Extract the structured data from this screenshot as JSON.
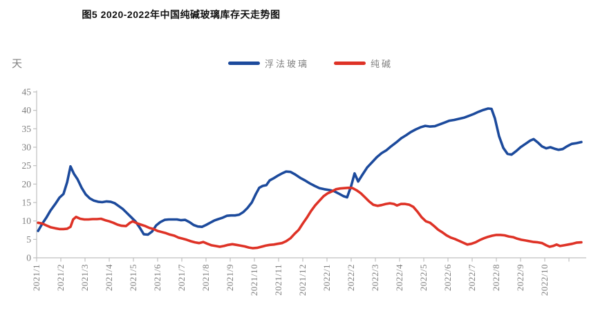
{
  "title": "图5 2020-2022年中国纯碱玻璃库存天走势图",
  "chart_data": {
    "type": "line",
    "title": "图5 2020-2022年中国纯碱玻璃库存天走势图",
    "xlabel": "",
    "ylabel": "天",
    "ylim": [
      0,
      45
    ],
    "y_ticks": [
      0,
      5,
      10,
      15,
      20,
      25,
      30,
      35,
      40,
      45
    ],
    "grid": false,
    "legend_position": "top-center",
    "x_axis_note": "x in fractional months, 0 = 2021/1 tick, 1 unit = 1 month, weekly data",
    "x_domain": [
      0,
      22.6
    ],
    "x_tick_labels": [
      "2021/1",
      "2021/2",
      "2021/3",
      "2021/4",
      "2021/5",
      "2021/6",
      "2021/7",
      "2021/8",
      "2021/9",
      "2021/10",
      "2021/11",
      "2021/12",
      "2022/1",
      "2022/2",
      "2022/3",
      "2022/4",
      "2022/5",
      "2022/6",
      "2022/7",
      "2022/8",
      "2022/9",
      "2022/10"
    ],
    "axis_color": "#bfbfbf",
    "series": [
      {
        "name": "浮法玻璃",
        "color": "#1c4a9c",
        "points": [
          [
            0.06,
            7.3
          ],
          [
            0.23,
            9.2
          ],
          [
            0.4,
            10.9
          ],
          [
            0.57,
            12.8
          ],
          [
            0.77,
            14.6
          ],
          [
            0.94,
            16.3
          ],
          [
            1.11,
            17.3
          ],
          [
            1.26,
            20.5
          ],
          [
            1.4,
            24.8
          ],
          [
            1.54,
            22.8
          ],
          [
            1.69,
            21.3
          ],
          [
            1.86,
            19.0
          ],
          [
            2.03,
            17.2
          ],
          [
            2.2,
            16.1
          ],
          [
            2.37,
            15.5
          ],
          [
            2.54,
            15.2
          ],
          [
            2.71,
            15.1
          ],
          [
            2.89,
            15.3
          ],
          [
            3.06,
            15.2
          ],
          [
            3.23,
            14.8
          ],
          [
            3.4,
            14.0
          ],
          [
            3.57,
            13.2
          ],
          [
            3.74,
            12.1
          ],
          [
            3.91,
            11.0
          ],
          [
            4.09,
            9.8
          ],
          [
            4.26,
            8.2
          ],
          [
            4.43,
            6.4
          ],
          [
            4.6,
            6.3
          ],
          [
            4.77,
            7.1
          ],
          [
            4.94,
            8.8
          ],
          [
            5.11,
            9.7
          ],
          [
            5.29,
            10.3
          ],
          [
            5.46,
            10.4
          ],
          [
            5.63,
            10.4
          ],
          [
            5.8,
            10.4
          ],
          [
            5.97,
            10.2
          ],
          [
            6.14,
            10.3
          ],
          [
            6.31,
            9.7
          ],
          [
            6.49,
            8.9
          ],
          [
            6.66,
            8.5
          ],
          [
            6.83,
            8.4
          ],
          [
            7.0,
            8.9
          ],
          [
            7.17,
            9.5
          ],
          [
            7.34,
            10.1
          ],
          [
            7.51,
            10.5
          ],
          [
            7.69,
            10.9
          ],
          [
            7.86,
            11.4
          ],
          [
            8.03,
            11.5
          ],
          [
            8.2,
            11.5
          ],
          [
            8.37,
            11.7
          ],
          [
            8.54,
            12.4
          ],
          [
            8.71,
            13.5
          ],
          [
            8.89,
            15.0
          ],
          [
            9.06,
            17.3
          ],
          [
            9.2,
            19.0
          ],
          [
            9.34,
            19.5
          ],
          [
            9.49,
            19.7
          ],
          [
            9.63,
            21.0
          ],
          [
            9.8,
            21.6
          ],
          [
            9.97,
            22.3
          ],
          [
            10.14,
            22.9
          ],
          [
            10.31,
            23.4
          ],
          [
            10.49,
            23.3
          ],
          [
            10.69,
            22.6
          ],
          [
            10.89,
            21.7
          ],
          [
            11.09,
            21.0
          ],
          [
            11.29,
            20.2
          ],
          [
            11.49,
            19.5
          ],
          [
            11.69,
            18.9
          ],
          [
            11.89,
            18.6
          ],
          [
            12.09,
            18.4
          ],
          [
            12.29,
            18.1
          ],
          [
            12.49,
            17.4
          ],
          [
            12.69,
            16.7
          ],
          [
            12.83,
            16.4
          ],
          [
            13.0,
            19.5
          ],
          [
            13.14,
            22.9
          ],
          [
            13.29,
            20.7
          ],
          [
            13.46,
            22.5
          ],
          [
            13.66,
            24.5
          ],
          [
            13.86,
            25.9
          ],
          [
            14.06,
            27.3
          ],
          [
            14.26,
            28.4
          ],
          [
            14.46,
            29.2
          ],
          [
            14.66,
            30.3
          ],
          [
            14.86,
            31.3
          ],
          [
            15.06,
            32.4
          ],
          [
            15.26,
            33.2
          ],
          [
            15.46,
            34.1
          ],
          [
            15.66,
            34.8
          ],
          [
            15.86,
            35.4
          ],
          [
            16.06,
            35.8
          ],
          [
            16.26,
            35.6
          ],
          [
            16.46,
            35.7
          ],
          [
            16.66,
            36.2
          ],
          [
            16.86,
            36.7
          ],
          [
            17.06,
            37.2
          ],
          [
            17.26,
            37.4
          ],
          [
            17.46,
            37.7
          ],
          [
            17.66,
            38.0
          ],
          [
            17.86,
            38.5
          ],
          [
            18.06,
            39.0
          ],
          [
            18.26,
            39.6
          ],
          [
            18.46,
            40.1
          ],
          [
            18.66,
            40.5
          ],
          [
            18.8,
            40.4
          ],
          [
            18.94,
            37.8
          ],
          [
            19.11,
            33.0
          ],
          [
            19.29,
            29.8
          ],
          [
            19.46,
            28.2
          ],
          [
            19.63,
            28.0
          ],
          [
            19.83,
            29.0
          ],
          [
            20.0,
            30.0
          ],
          [
            20.2,
            30.9
          ],
          [
            20.4,
            31.8
          ],
          [
            20.54,
            32.2
          ],
          [
            20.71,
            31.3
          ],
          [
            20.89,
            30.2
          ],
          [
            21.06,
            29.7
          ],
          [
            21.23,
            30.0
          ],
          [
            21.4,
            29.6
          ],
          [
            21.57,
            29.3
          ],
          [
            21.74,
            29.5
          ],
          [
            21.91,
            30.2
          ],
          [
            22.11,
            30.9
          ],
          [
            22.31,
            31.1
          ],
          [
            22.51,
            31.4
          ]
        ]
      },
      {
        "name": "纯碱",
        "color": "#de3226",
        "points": [
          [
            0.06,
            9.5
          ],
          [
            0.23,
            9.3
          ],
          [
            0.4,
            8.8
          ],
          [
            0.57,
            8.3
          ],
          [
            0.77,
            8.0
          ],
          [
            0.94,
            7.8
          ],
          [
            1.11,
            7.8
          ],
          [
            1.26,
            7.9
          ],
          [
            1.4,
            8.4
          ],
          [
            1.51,
            10.4
          ],
          [
            1.63,
            11.1
          ],
          [
            1.8,
            10.6
          ],
          [
            1.97,
            10.4
          ],
          [
            2.14,
            10.4
          ],
          [
            2.31,
            10.5
          ],
          [
            2.49,
            10.5
          ],
          [
            2.66,
            10.6
          ],
          [
            2.83,
            10.2
          ],
          [
            3.0,
            9.9
          ],
          [
            3.17,
            9.5
          ],
          [
            3.34,
            9.0
          ],
          [
            3.51,
            8.7
          ],
          [
            3.69,
            8.6
          ],
          [
            3.86,
            9.5
          ],
          [
            3.97,
            9.9
          ],
          [
            4.14,
            9.4
          ],
          [
            4.31,
            9.0
          ],
          [
            4.49,
            8.6
          ],
          [
            4.66,
            8.1
          ],
          [
            4.83,
            7.8
          ],
          [
            5.0,
            7.3
          ],
          [
            5.17,
            7.0
          ],
          [
            5.34,
            6.7
          ],
          [
            5.51,
            6.3
          ],
          [
            5.69,
            6.0
          ],
          [
            5.86,
            5.5
          ],
          [
            6.03,
            5.2
          ],
          [
            6.2,
            4.9
          ],
          [
            6.37,
            4.5
          ],
          [
            6.54,
            4.2
          ],
          [
            6.71,
            4.0
          ],
          [
            6.89,
            4.3
          ],
          [
            7.06,
            3.8
          ],
          [
            7.23,
            3.4
          ],
          [
            7.4,
            3.2
          ],
          [
            7.57,
            3.0
          ],
          [
            7.74,
            3.2
          ],
          [
            7.91,
            3.5
          ],
          [
            8.09,
            3.7
          ],
          [
            8.26,
            3.5
          ],
          [
            8.43,
            3.3
          ],
          [
            8.6,
            3.1
          ],
          [
            8.77,
            2.8
          ],
          [
            8.94,
            2.6
          ],
          [
            9.11,
            2.7
          ],
          [
            9.29,
            3.0
          ],
          [
            9.46,
            3.3
          ],
          [
            9.63,
            3.5
          ],
          [
            9.8,
            3.6
          ],
          [
            9.97,
            3.8
          ],
          [
            10.14,
            4.0
          ],
          [
            10.31,
            4.5
          ],
          [
            10.49,
            5.3
          ],
          [
            10.66,
            6.5
          ],
          [
            10.83,
            7.6
          ],
          [
            11.0,
            9.3
          ],
          [
            11.17,
            10.9
          ],
          [
            11.34,
            12.7
          ],
          [
            11.51,
            14.2
          ],
          [
            11.69,
            15.5
          ],
          [
            11.86,
            16.7
          ],
          [
            12.03,
            17.5
          ],
          [
            12.2,
            18.0
          ],
          [
            12.37,
            18.6
          ],
          [
            12.54,
            18.8
          ],
          [
            12.71,
            18.9
          ],
          [
            12.89,
            19.0
          ],
          [
            13.06,
            18.9
          ],
          [
            13.23,
            18.3
          ],
          [
            13.4,
            17.5
          ],
          [
            13.57,
            16.4
          ],
          [
            13.74,
            15.3
          ],
          [
            13.91,
            14.4
          ],
          [
            14.09,
            14.1
          ],
          [
            14.26,
            14.3
          ],
          [
            14.43,
            14.6
          ],
          [
            14.6,
            14.8
          ],
          [
            14.77,
            14.6
          ],
          [
            14.89,
            14.2
          ],
          [
            15.06,
            14.6
          ],
          [
            15.23,
            14.6
          ],
          [
            15.4,
            14.4
          ],
          [
            15.57,
            13.8
          ],
          [
            15.74,
            12.5
          ],
          [
            15.91,
            11.0
          ],
          [
            16.09,
            9.9
          ],
          [
            16.26,
            9.5
          ],
          [
            16.43,
            8.6
          ],
          [
            16.6,
            7.6
          ],
          [
            16.77,
            6.9
          ],
          [
            16.94,
            6.1
          ],
          [
            17.11,
            5.5
          ],
          [
            17.29,
            5.1
          ],
          [
            17.46,
            4.6
          ],
          [
            17.63,
            4.1
          ],
          [
            17.8,
            3.6
          ],
          [
            17.97,
            3.8
          ],
          [
            18.14,
            4.2
          ],
          [
            18.31,
            4.8
          ],
          [
            18.49,
            5.3
          ],
          [
            18.66,
            5.7
          ],
          [
            18.83,
            6.0
          ],
          [
            19.0,
            6.2
          ],
          [
            19.17,
            6.2
          ],
          [
            19.34,
            6.1
          ],
          [
            19.51,
            5.8
          ],
          [
            19.69,
            5.6
          ],
          [
            19.86,
            5.2
          ],
          [
            20.03,
            4.9
          ],
          [
            20.2,
            4.7
          ],
          [
            20.37,
            4.5
          ],
          [
            20.54,
            4.3
          ],
          [
            20.71,
            4.2
          ],
          [
            20.89,
            4.0
          ],
          [
            21.06,
            3.4
          ],
          [
            21.2,
            3.0
          ],
          [
            21.34,
            3.2
          ],
          [
            21.49,
            3.6
          ],
          [
            21.63,
            3.2
          ],
          [
            21.8,
            3.4
          ],
          [
            21.97,
            3.6
          ],
          [
            22.14,
            3.8
          ],
          [
            22.31,
            4.1
          ],
          [
            22.51,
            4.2
          ]
        ]
      }
    ]
  }
}
